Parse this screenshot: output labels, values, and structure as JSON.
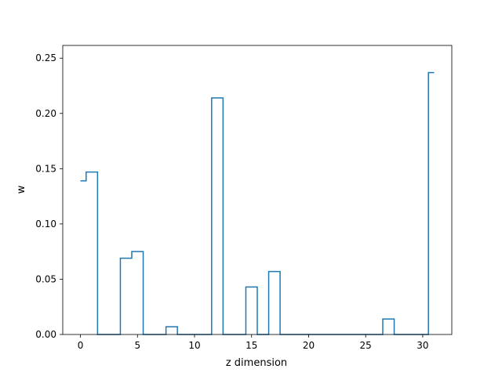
{
  "chart_data": {
    "type": "line",
    "step": "mid",
    "title": "",
    "xlabel": "z dimension",
    "ylabel": "w",
    "xlim": [
      -1.55,
      32.55
    ],
    "ylim": [
      0,
      0.2615
    ],
    "xticks": [
      0,
      5,
      10,
      15,
      20,
      25,
      30
    ],
    "yticks": [
      0.0,
      0.05,
      0.1,
      0.15,
      0.2,
      0.25
    ],
    "xtick_labels": [
      "0",
      "5",
      "10",
      "15",
      "20",
      "25",
      "30"
    ],
    "ytick_labels": [
      "0.00",
      "0.05",
      "0.10",
      "0.15",
      "0.20",
      "0.25"
    ],
    "grid": false,
    "series": [
      {
        "color": "#1f77b4",
        "x": [
          0,
          1,
          2,
          3,
          4,
          5,
          6,
          7,
          8,
          9,
          10,
          11,
          12,
          13,
          14,
          15,
          16,
          17,
          18,
          19,
          20,
          21,
          22,
          23,
          24,
          25,
          26,
          27,
          28,
          29,
          30,
          31
        ],
        "y": [
          0.139,
          0.147,
          0.0,
          0.0,
          0.069,
          0.075,
          0.0,
          0.0,
          0.007,
          0.0,
          0.0,
          0.0,
          0.214,
          0.0,
          0.0,
          0.043,
          0.0,
          0.057,
          0.0,
          0.0,
          0.0,
          0.0,
          0.0,
          0.0,
          0.0,
          0.0,
          0.0,
          0.014,
          0.0,
          0.0,
          0.0,
          0.237
        ]
      }
    ]
  }
}
